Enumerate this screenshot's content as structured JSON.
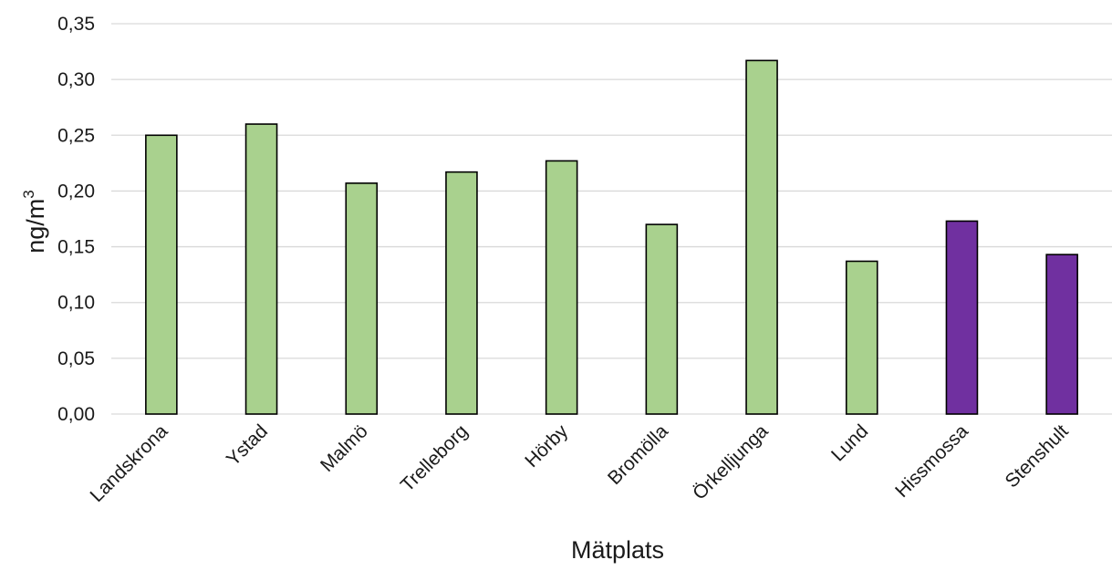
{
  "chart_data": {
    "type": "bar",
    "title": "",
    "xlabel": "Mätplats",
    "ylabel_base": "ng/m",
    "ylabel_superscript": "3",
    "categories": [
      "Landskrona",
      "Ystad",
      "Malmö",
      "Trelleborg",
      "Hörby",
      "Bromölla",
      "Örkelljunga",
      "Lund",
      "Hissmossa",
      "Stenshult"
    ],
    "values": [
      0.25,
      0.26,
      0.207,
      0.217,
      0.227,
      0.17,
      0.317,
      0.137,
      0.173,
      0.143
    ],
    "bar_colors": [
      "#a9d18e",
      "#a9d18e",
      "#a9d18e",
      "#a9d18e",
      "#a9d18e",
      "#a9d18e",
      "#a9d18e",
      "#a9d18e",
      "#7030a0",
      "#7030a0"
    ],
    "ylim": [
      0,
      0.35
    ],
    "yticks": [
      "0,00",
      "0,05",
      "0,10",
      "0,15",
      "0,20",
      "0,25",
      "0,30",
      "0,35"
    ],
    "grid": true,
    "legend": "none"
  }
}
